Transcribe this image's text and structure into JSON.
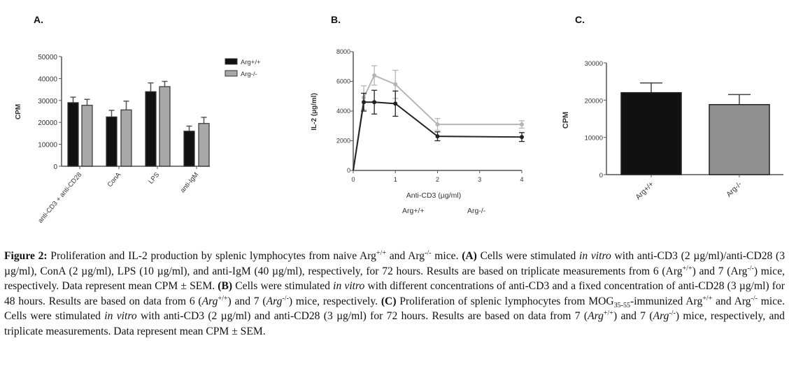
{
  "panels": [
    "A.",
    "B.",
    "C."
  ],
  "chart_data": [
    {
      "type": "bar",
      "title": "A.",
      "ylabel": "CPM",
      "xlabel": "",
      "ylim": [
        0,
        50000
      ],
      "yticks": [
        "0",
        "10000",
        "20000",
        "30000",
        "40000",
        "50000"
      ],
      "categories": [
        "anti-CD3 + anti-CD28",
        "ConA",
        "LPS",
        "anti-IgM"
      ],
      "legend_position": "top-right",
      "series": [
        {
          "name": "Arg+/+",
          "color": "#111111",
          "values": [
            29000,
            22500,
            34000,
            16000
          ],
          "errors": [
            2500,
            3000,
            4000,
            2300
          ]
        },
        {
          "name": "Arg-/-",
          "color": "#a8a8a8",
          "values": [
            27800,
            25700,
            36300,
            19500
          ],
          "errors": [
            2700,
            4000,
            2400,
            2800
          ]
        }
      ]
    },
    {
      "type": "line",
      "title": "B.",
      "ylabel": "IL-2 (µg/ml)",
      "xlabel": "Anti-CD3 (µg/ml)",
      "xlim": [
        0,
        4
      ],
      "ylim": [
        0,
        8000
      ],
      "xticks": [
        "0",
        "1",
        "2",
        "3",
        "4"
      ],
      "yticks": [
        "0",
        "2000",
        "4000",
        "6000",
        "8000"
      ],
      "x": [
        0,
        0.25,
        0.5,
        1,
        2,
        4
      ],
      "legend": [
        "Arg+/+",
        "Arg-/-"
      ],
      "legend_position": "bottom",
      "series": [
        {
          "name": "Arg+/+",
          "color": "#222222",
          "values": [
            0,
            4600,
            4600,
            4500,
            2300,
            2250
          ],
          "errors": [
            0,
            600,
            800,
            850,
            300,
            300
          ]
        },
        {
          "name": "Arg-/-",
          "color": "#b5b5b5",
          "values": [
            0,
            4900,
            6400,
            5800,
            3100,
            3100
          ],
          "errors": [
            0,
            800,
            650,
            950,
            400,
            250
          ]
        }
      ]
    },
    {
      "type": "bar",
      "title": "C.",
      "ylabel": "CPM",
      "xlabel": "",
      "ylim": [
        0,
        30000
      ],
      "yticks": [
        "0",
        "10000",
        "20000",
        "30000"
      ],
      "categories": [
        "Arg+/+",
        "Arg-/-"
      ],
      "colors": [
        "#111111",
        "#8f8f8f"
      ],
      "values": [
        22000,
        18800
      ],
      "errors": [
        2600,
        2700
      ]
    }
  ],
  "caption": [
    {
      "t": "Figure 2:",
      "s": "b"
    },
    {
      "t": " Proliferation and IL-2 production by splenic lymphocytes from naive Arg"
    },
    {
      "t": "+/+",
      "s": "sup"
    },
    {
      "t": " and Arg"
    },
    {
      "t": "-/-",
      "s": "sup"
    },
    {
      "t": " mice. "
    },
    {
      "t": "(A)",
      "s": "b"
    },
    {
      "t": " Cells were stimulated "
    },
    {
      "t": "in vitro",
      "s": "i"
    },
    {
      "t": " with anti-CD3 (2 µg/ml)/anti-CD28 (3 µg/ml), ConA (2 µg/ml), LPS (10 µg/ml), and anti-IgM (40 µg/ml), respectively, for 72 hours. Results are based on triplicate measurements from 6 (Arg"
    },
    {
      "t": "+/+",
      "s": "sup"
    },
    {
      "t": ") and 7 (Arg"
    },
    {
      "t": "-/-",
      "s": "sup"
    },
    {
      "t": ") mice, respectively. Data represent mean CPM ± SEM. "
    },
    {
      "t": "(B)",
      "s": "b"
    },
    {
      "t": " Cells were stimulated "
    },
    {
      "t": "in vitro",
      "s": "i"
    },
    {
      "t": " with different concentrations of anti-CD3 and a fixed concentration of anti-CD28 (3 µg/ml) for 48 hours. Results are based on data from 6 ("
    },
    {
      "t": "Arg",
      "s": "i"
    },
    {
      "t": "+/+",
      "s": "sup"
    },
    {
      "t": ") and 7 ("
    },
    {
      "t": "Arg",
      "s": "i"
    },
    {
      "t": "-/-",
      "s": "sup"
    },
    {
      "t": ") mice, respectively. "
    },
    {
      "t": "(C)",
      "s": "b"
    },
    {
      "t": " Proliferation of splenic lymphocytes from MOG"
    },
    {
      "t": "35-55",
      "s": "sub"
    },
    {
      "t": "-immunized Arg"
    },
    {
      "t": "+/+",
      "s": "sup"
    },
    {
      "t": " and Arg"
    },
    {
      "t": "-/-",
      "s": "sup"
    },
    {
      "t": " mice. Cells were stimulated "
    },
    {
      "t": "in vitro",
      "s": "i"
    },
    {
      "t": " with anti-CD3 (2 µg/ml) and anti-CD28 (3 µg/ml) for 72 hours. Results are based on data from 7 ("
    },
    {
      "t": "Arg",
      "s": "i"
    },
    {
      "t": "+/+",
      "s": "sup"
    },
    {
      "t": ") and 7 ("
    },
    {
      "t": "Arg",
      "s": "i"
    },
    {
      "t": "-/-",
      "s": "sup"
    },
    {
      "t": ") mice, respectively, and triplicate measurements. Data represent mean CPM ± SEM."
    }
  ]
}
